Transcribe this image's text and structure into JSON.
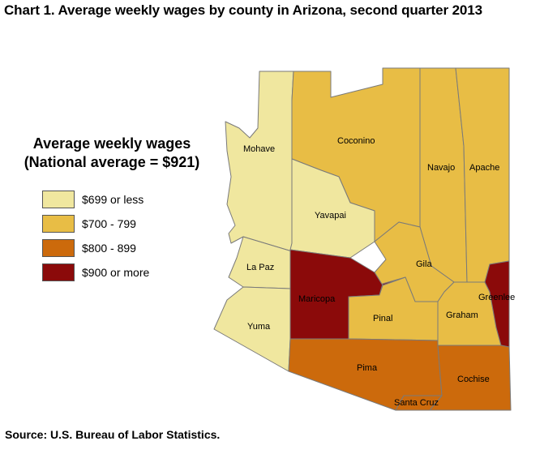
{
  "title": "Chart 1. Average weekly wages by county in Arizona, second quarter 2013",
  "source": "Source: U.S. Bureau of Labor Statistics.",
  "legend": {
    "title_line1": "Average weekly wages",
    "title_line2": "(National average = $921)",
    "items": [
      {
        "label": "$699 or less",
        "color": "#f0e79f"
      },
      {
        "label": "$700 - 799",
        "color": "#e8bd45"
      },
      {
        "label": "$800 - 899",
        "color": "#cc6a0c"
      },
      {
        "label": "$900 or more",
        "color": "#8b0a0a"
      }
    ]
  },
  "counties": [
    {
      "name": "Mohave",
      "wage_class": "$699 or less"
    },
    {
      "name": "Coconino",
      "wage_class": "$700 - 799"
    },
    {
      "name": "Navajo",
      "wage_class": "$700 - 799"
    },
    {
      "name": "Apache",
      "wage_class": "$700 - 799"
    },
    {
      "name": "Yavapai",
      "wage_class": "$699 or less"
    },
    {
      "name": "La Paz",
      "wage_class": "$699 or less"
    },
    {
      "name": "Gila",
      "wage_class": "$700 - 799"
    },
    {
      "name": "Greenlee",
      "wage_class": "$900 or more"
    },
    {
      "name": "Maricopa",
      "wage_class": "$900 or more"
    },
    {
      "name": "Pinal",
      "wage_class": "$700 - 799"
    },
    {
      "name": "Graham",
      "wage_class": "$700 - 799"
    },
    {
      "name": "Yuma",
      "wage_class": "$699 or less"
    },
    {
      "name": "Pima",
      "wage_class": "$800 - 899"
    },
    {
      "name": "Cochise",
      "wage_class": "$800 - 899"
    },
    {
      "name": "Santa Cruz",
      "wage_class": "$800 - 899"
    }
  ]
}
